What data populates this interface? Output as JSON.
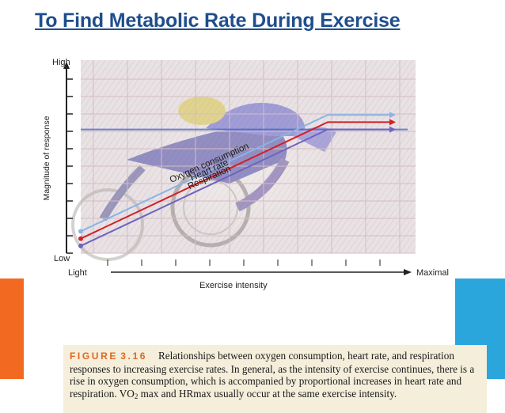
{
  "slide": {
    "title": "To Find Metabolic Rate During Exercise",
    "accent_left": "#f26a21",
    "accent_right": "#2aa6dc",
    "title_color": "#1f4e8c"
  },
  "figure": {
    "background_image": "cyclist photo (faded)",
    "caption": {
      "label": "FIGURE",
      "number": "3.16",
      "part1": "Relationships between oxygen consumption, heart rate, and respiration responses to increasing exercise rates. In general, as the intensity of exercise continues, there is a rise in oxygen consumption, which is accompanied by proportional increases in heart rate and respiration. VO",
      "sub": "2",
      "part2": " max and HRmax usually occur at the same exercise intensity."
    }
  },
  "chart_data": {
    "type": "line",
    "xlabel": "Exercise intensity",
    "ylabel": "Magnitude of response",
    "x_tick_labels": [
      "Light",
      "Maximal"
    ],
    "y_tick_labels": [
      "Low",
      "High"
    ],
    "xlim": [
      0,
      1
    ],
    "ylim": [
      0,
      1
    ],
    "series": [
      {
        "name": "Oxygen consumption",
        "color": "#8ab3e6",
        "x": [
          0,
          0.8,
          1.0
        ],
        "y": [
          0.12,
          0.76,
          0.76
        ]
      },
      {
        "name": "Heart rate",
        "color": "#d0202a",
        "x": [
          0,
          0.8,
          1.0
        ],
        "y": [
          0.08,
          0.72,
          0.72
        ]
      },
      {
        "name": "Respiration",
        "color": "#6e63c0",
        "x": [
          0,
          0.8,
          1.0
        ],
        "y": [
          0.04,
          0.68,
          0.68
        ]
      }
    ],
    "reference_line_y": 0.68,
    "reference_line_color": "#3f62c8",
    "grid": true
  }
}
